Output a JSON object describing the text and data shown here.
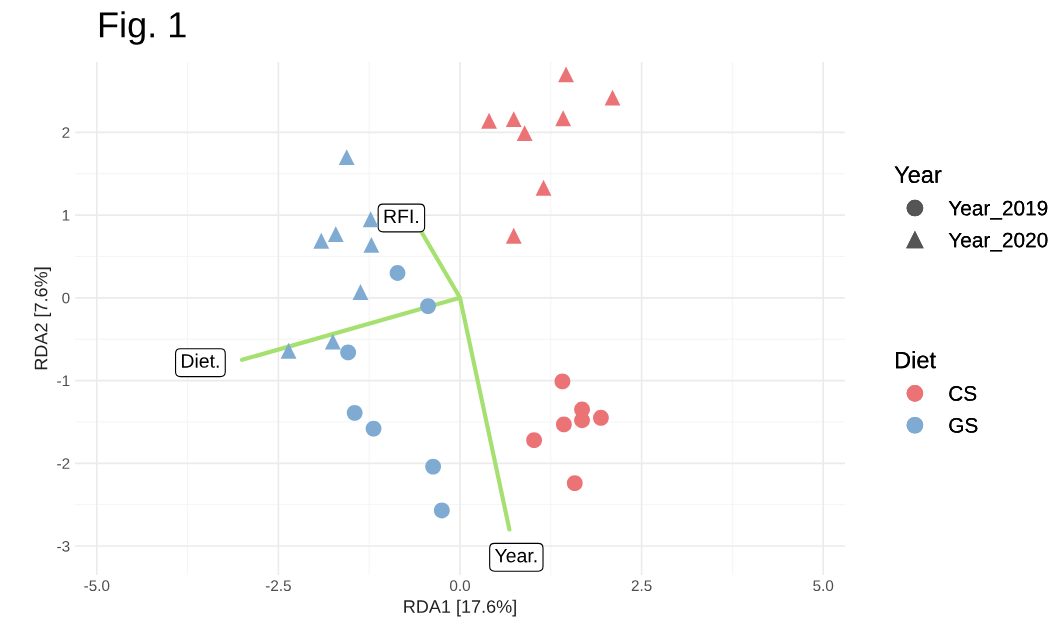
{
  "chart_data": {
    "type": "scatter",
    "title": "Fig. 1",
    "xlabel": "RDA1 [17.6%]",
    "ylabel": "RDA2 [7.6%]",
    "xlim": [
      -5.3,
      5.3
    ],
    "ylim": [
      -3.35,
      2.85
    ],
    "xticks": [
      {
        "value": -5,
        "label": "-5.0"
      },
      {
        "value": -2.5,
        "label": "-2.5"
      },
      {
        "value": 0,
        "label": "0.0"
      },
      {
        "value": 2.5,
        "label": "2.5"
      },
      {
        "value": 5,
        "label": "5.0"
      }
    ],
    "yticks": [
      -3,
      -2,
      -1,
      0,
      1,
      2
    ],
    "grid": true,
    "legend": "right",
    "legend_title": "Year",
    "series": [
      {
        "name": "Year_2019",
        "color": "#555555",
        "marker": "circle"
      },
      {
        "name": "Year_2020",
        "color": "#555555",
        "marker": "triangle"
      },
      {
        "name": "CS",
        "color": "#ec7375",
        "marker": "circle",
        "x": [
          1.41,
          1.68,
          1.43,
          1.68,
          1.94,
          1.02,
          1.58
        ],
        "values": [
          -1.01,
          -1.35,
          -1.53,
          -1.48,
          -1.45,
          -1.72,
          -2.24
        ]
      },
      {
        "name": "GS",
        "color": "#7fabd3",
        "marker": "circle",
        "x": [
          -0.86,
          -0.44,
          -1.54,
          -1.45,
          -1.19,
          -0.37,
          -0.25
        ],
        "values": [
          0.3,
          -0.1,
          -0.66,
          -1.39,
          -1.58,
          -2.04,
          -2.57
        ]
      },
      {
        "color": "#ec7375",
        "marker": "triangle",
        "x": [
          0.4,
          0.74,
          0.89,
          1.42,
          1.46,
          2.1,
          1.15,
          0.74
        ],
        "values": [
          2.14,
          2.16,
          1.99,
          2.17,
          2.7,
          2.42,
          1.33,
          0.75
        ]
      },
      {
        "color": "#7fabd3",
        "marker": "triangle",
        "x": [
          -1.56,
          -1.23,
          -1.71,
          -1.91,
          -1.22,
          -1.37,
          -1.75,
          -2.36
        ],
        "values": [
          1.7,
          0.95,
          0.77,
          0.69,
          0.64,
          0.07,
          -0.53,
          -0.64
        ]
      },
      {
        "type": "line",
        "color": "#a6e070",
        "x": [
          -0.52,
          0,
          -3.0,
          null,
          0,
          0.68
        ],
        "values": [
          0.78,
          0,
          -0.75,
          null,
          0,
          -2.8
        ]
      }
    ],
    "annotations": [
      "Diet",
      {
        "text": "RFI.",
        "x": -0.52,
        "y": 0.78
      },
      {
        "text": "Diet.",
        "x": -3.0,
        "y": -0.75
      },
      {
        "text": "Year.",
        "x": 0.68,
        "y": -2.8
      }
    ]
  }
}
